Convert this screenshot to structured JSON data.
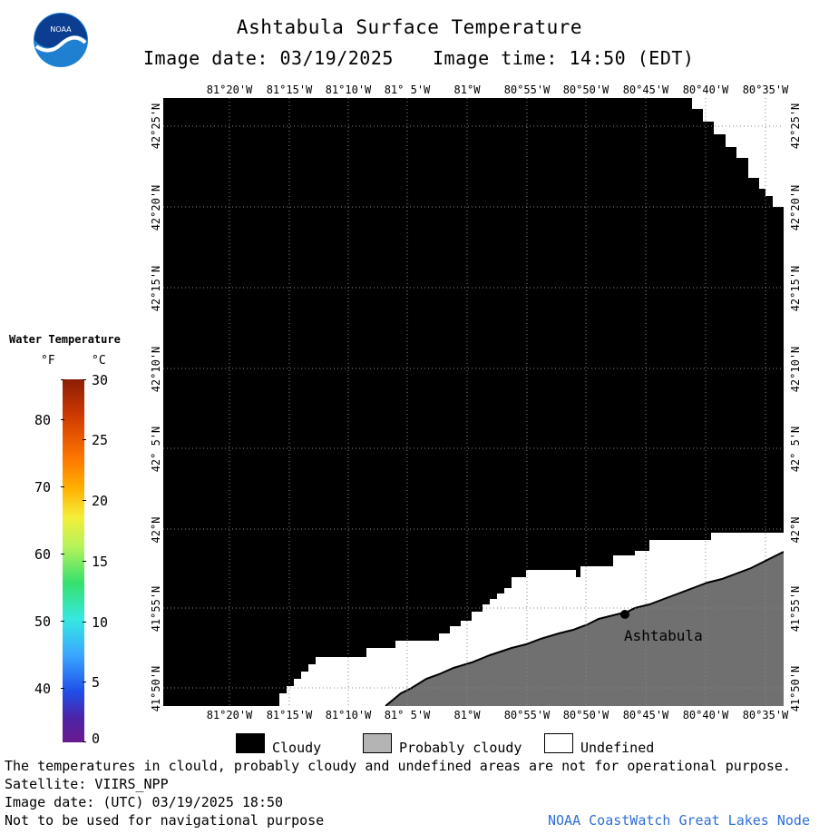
{
  "header": {
    "title": "Ashtabula Surface Temperature",
    "image_date": "Image date: 03/19/2025",
    "image_time": "Image time: 14:50 (EDT)"
  },
  "map": {
    "lon_labels": [
      "81°20'W",
      "81°15'W",
      "81°10'W",
      "81° 5'W",
      "81°W",
      "80°55'W",
      "80°50'W",
      "80°45'W",
      "80°40'W",
      "80°35'W"
    ],
    "lat_labels": [
      "42°25'N",
      "42°20'N",
      "42°15'N",
      "42°10'N",
      "42° 5'N",
      "42°N",
      "41°55'N",
      "41°50'N"
    ],
    "city_label": "Ashtabula",
    "colors": {
      "cloudy": "#000000",
      "probably_cloudy": "#707070",
      "undefined": "#ffffff"
    }
  },
  "legend": {
    "title": "Water Temperature",
    "f_unit": "°F",
    "c_unit": "°C",
    "f_ticks": [
      "80",
      "70",
      "60",
      "50",
      "40"
    ],
    "c_ticks": [
      "30",
      "25",
      "20",
      "15",
      "10",
      "5",
      "0"
    ]
  },
  "key": {
    "cloudy": "Cloudy",
    "probably_cloudy": "Probably cloudy",
    "undefined": "Undefined"
  },
  "footer": {
    "disclaimer": "The temperatures in clould, probably cloudy and undefined areas are not for operational purpose.",
    "satellite": "Satellite: VIIRS_NPP",
    "utc_date": "Image date: (UTC) 03/19/2025  18:50",
    "nav_warning": "Not to be used for navigational purpose",
    "credit": "NOAA CoastWatch Great Lakes Node"
  }
}
